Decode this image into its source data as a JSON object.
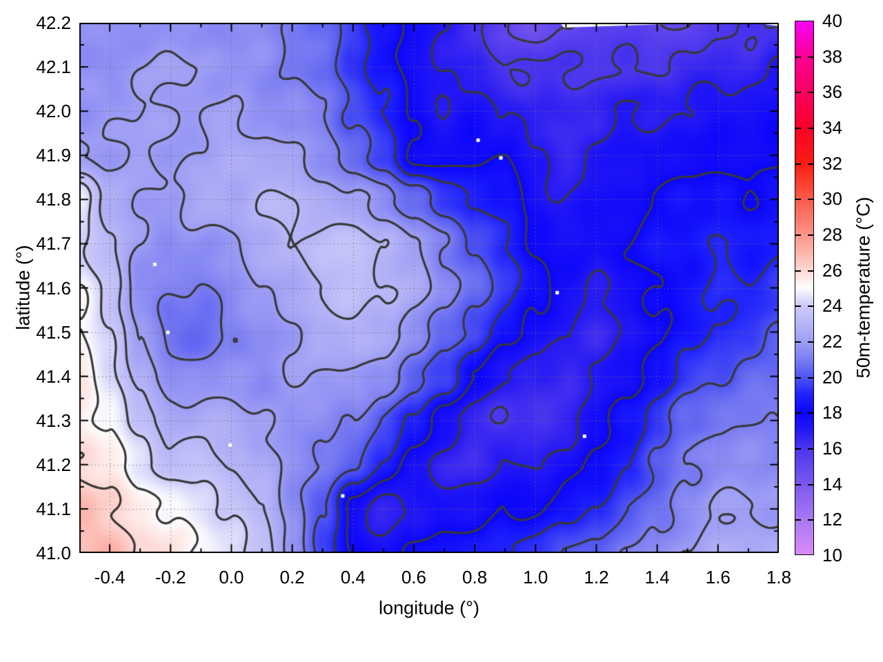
{
  "chart_data": {
    "type": "heatmap",
    "title": "",
    "xlabel": "longitude (°)",
    "ylabel": "latitude (°)",
    "x_axis": {
      "range": [
        -0.5,
        1.8
      ],
      "tick_values": [
        -0.4,
        -0.2,
        0.0,
        0.2,
        0.4,
        0.6,
        0.8,
        1.0,
        1.2,
        1.4,
        1.6,
        1.8
      ],
      "tick_labels": [
        "-0.4",
        "-0.2",
        "0.0",
        "0.2",
        "0.4",
        "0.6",
        "0.8",
        "1.0",
        "1.2",
        "1.4",
        "1.6",
        "1.8"
      ],
      "minor_step": 0.1,
      "grid": true
    },
    "y_axis": {
      "range": [
        41.0,
        42.2
      ],
      "tick_values": [
        41.0,
        41.1,
        41.2,
        41.3,
        41.4,
        41.5,
        41.6,
        41.7,
        41.8,
        41.9,
        42.0,
        42.1,
        42.2
      ],
      "tick_labels": [
        "41.0",
        "41.1",
        "41.2",
        "41.3",
        "41.4",
        "41.5",
        "41.6",
        "41.7",
        "41.8",
        "41.9",
        "42.0",
        "42.1",
        "42.2"
      ],
      "minor_step": 0.05,
      "grid": true
    },
    "colorbar": {
      "label": "50m-temperature (°C)",
      "range": [
        10,
        40
      ],
      "tick_values": [
        10,
        12,
        14,
        16,
        18,
        20,
        22,
        24,
        26,
        28,
        30,
        32,
        34,
        36,
        38,
        40
      ],
      "tick_labels": [
        "10",
        "12",
        "14",
        "16",
        "18",
        "20",
        "22",
        "24",
        "26",
        "28",
        "30",
        "32",
        "34",
        "36",
        "38",
        "40"
      ]
    },
    "palette_stops": [
      [
        10,
        "#d98af7"
      ],
      [
        12,
        "#a878f2"
      ],
      [
        14,
        "#7a58ee"
      ],
      [
        16,
        "#4a35ee"
      ],
      [
        17,
        "#2418f5"
      ],
      [
        18,
        "#0b05fb"
      ],
      [
        19,
        "#1f22fc"
      ],
      [
        20,
        "#5055f2"
      ],
      [
        21,
        "#7c7ef2"
      ],
      [
        22,
        "#9e9ef5"
      ],
      [
        23,
        "#b7b6f7"
      ],
      [
        24,
        "#cbcaf9"
      ],
      [
        25,
        "#fdfdfe"
      ],
      [
        26,
        "#fdd7d2"
      ],
      [
        27,
        "#fcb5ab"
      ],
      [
        28,
        "#fb9488"
      ],
      [
        30,
        "#fb5a49"
      ],
      [
        32,
        "#fa1d11"
      ],
      [
        34,
        "#fb0128"
      ],
      [
        36,
        "#fa0060"
      ],
      [
        38,
        "#fb0094"
      ],
      [
        40,
        "#f902f7"
      ]
    ],
    "contour_levels": [
      15,
      16,
      17,
      18,
      19,
      20,
      21,
      22,
      23,
      24,
      25,
      26
    ],
    "contour_color": "#383838",
    "grid_lons": [
      -0.5,
      -0.4,
      -0.3,
      -0.2,
      -0.1,
      0.0,
      0.1,
      0.2,
      0.3,
      0.4,
      0.5,
      0.6,
      0.7,
      0.8,
      0.9,
      1.0,
      1.1,
      1.2,
      1.3,
      1.4,
      1.5,
      1.6,
      1.7,
      1.8
    ],
    "grid_lats": [
      42.2,
      42.1,
      42.0,
      41.9,
      41.8,
      41.7,
      41.6,
      41.5,
      41.4,
      41.3,
      41.2,
      41.1,
      41.0
    ],
    "temps_by_lat_row": [
      [
        21.5,
        21.5,
        21.5,
        21.5,
        21.5,
        21.5,
        21.5,
        21,
        20.5,
        19.5,
        18.5,
        17.5,
        17,
        16,
        15,
        14.5,
        15,
        15.5,
        15.5,
        15,
        15,
        15.5,
        16,
        16
      ],
      [
        21.5,
        21.5,
        22,
        22,
        22,
        21.5,
        21.5,
        21,
        20.5,
        19.5,
        18.5,
        17.5,
        17,
        16.5,
        16,
        16,
        16,
        16,
        16,
        16,
        16.5,
        16.5,
        16.5,
        17
      ],
      [
        21.5,
        22,
        22,
        22,
        22,
        22,
        21.5,
        21.5,
        21,
        20,
        19,
        18,
        17,
        17.5,
        17,
        16.5,
        16.5,
        16.5,
        17,
        17,
        17,
        17.5,
        17.5,
        17.5
      ],
      [
        22,
        22,
        22,
        22,
        22,
        22.5,
        22.5,
        22,
        21.5,
        20.5,
        19.5,
        18,
        17.5,
        18,
        18,
        17,
        16.5,
        17,
        17.5,
        17.5,
        17.5,
        18,
        17.5,
        18
      ],
      [
        25,
        22.5,
        22,
        22,
        22.5,
        22.5,
        23,
        23,
        22.5,
        22,
        21.5,
        20.5,
        19.5,
        19,
        18.5,
        17.5,
        17,
        17.5,
        17.5,
        18,
        18.5,
        18.5,
        18,
        18.5
      ],
      [
        24,
        23,
        22,
        21.5,
        21.5,
        22,
        22.5,
        23,
        23.5,
        23.5,
        23,
        22,
        21,
        20,
        19,
        18,
        17.5,
        17.5,
        18,
        18.5,
        18.5,
        19,
        18.5,
        19
      ],
      [
        25,
        23.5,
        21.5,
        21,
        21,
        21.5,
        22,
        22.5,
        23,
        23.5,
        23,
        22.5,
        21.5,
        20.5,
        19.5,
        18.5,
        17.5,
        17,
        17.5,
        18,
        18.5,
        19,
        19,
        19.5
      ],
      [
        25,
        24,
        22,
        20.5,
        20.5,
        21,
        21.5,
        22,
        22.5,
        23,
        22.5,
        21.5,
        20.5,
        19.5,
        18.5,
        17.5,
        17,
        16.5,
        17,
        18,
        18.5,
        19,
        19.5,
        20
      ],
      [
        25.5,
        24.5,
        22.5,
        21.5,
        21.5,
        21.5,
        21.5,
        22,
        22,
        22,
        21.5,
        20.5,
        19.5,
        18,
        17,
        16.5,
        16.5,
        17,
        17.5,
        18.5,
        19.5,
        20,
        20.5,
        20.5
      ],
      [
        25.5,
        25,
        23.5,
        22.5,
        22.5,
        22.5,
        22,
        21.5,
        21.5,
        21,
        20,
        19,
        17.5,
        16.5,
        16,
        16,
        16.5,
        17.5,
        18.5,
        19.5,
        20.5,
        21,
        21,
        21
      ],
      [
        26,
        25.5,
        24.5,
        23.5,
        23.5,
        23,
        22.5,
        21.5,
        21,
        20,
        19,
        17.5,
        16.5,
        16.5,
        17,
        17,
        17.5,
        18,
        19,
        20,
        21,
        21.5,
        21.5,
        21.5
      ],
      [
        27,
        26,
        25.5,
        25,
        24.5,
        24,
        23,
        21.5,
        20,
        17.5,
        16.5,
        17,
        17.5,
        17.5,
        18,
        18,
        18.5,
        19,
        20,
        20.5,
        21.5,
        22,
        22,
        22
      ],
      [
        26.5,
        27,
        26,
        25.5,
        25,
        24.5,
        23.5,
        22,
        19.5,
        18,
        17.5,
        18,
        18.5,
        18.5,
        19,
        19.5,
        20,
        20.5,
        21,
        21.5,
        22,
        22.5,
        22.5,
        22.5
      ]
    ],
    "missing_points": [
      [
        -0.253,
        41.654
      ],
      [
        -0.21,
        41.5
      ],
      [
        0.81,
        41.935
      ],
      [
        0.885,
        41.895
      ],
      [
        -0.005,
        41.245
      ],
      [
        0.365,
        41.13
      ],
      [
        1.16,
        41.265
      ],
      [
        1.07,
        41.59
      ]
    ],
    "top_edge_gaps": [
      [
        1.08,
        1.56
      ],
      [
        1.72,
        1.8
      ]
    ]
  }
}
